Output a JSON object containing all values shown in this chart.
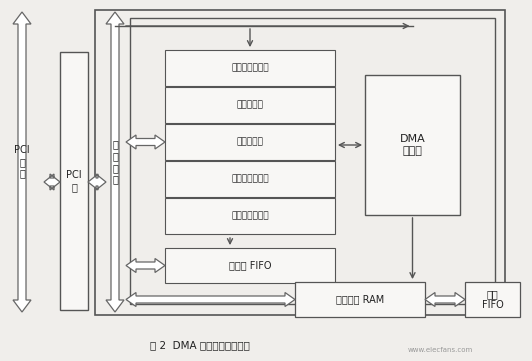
{
  "title": "图 2  DMA 控制器的模块结构",
  "background_color": "#f0eeeb",
  "box_facecolor": "#f8f7f5",
  "box_edge_color": "#555555",
  "text_color": "#222222",
  "arrow_color": "#555555",
  "registers": [
    "控制状态寄存器",
    "地址寄存器",
    "字节寄存器",
    "中断状态寄存器",
    "中断屏蔽寄存器"
  ],
  "fifo_label": "描述符 FIFO",
  "dma_label": "DMA\n状态机",
  "ram_label": "数据通道 RAM",
  "ext_fifo_label": "外部\nFIFO",
  "pci_bus_label": "PCI\n总\n线",
  "pci_core_label": "PCI\n核",
  "local_bus_label": "本\n地\n总\n线",
  "watermark": "www.elecfans.com"
}
